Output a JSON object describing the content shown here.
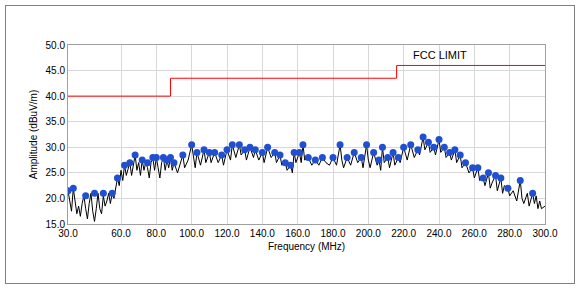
{
  "chart_data": {
    "type": "line",
    "x_label": "Frequency (MHz)",
    "y_label": "Amplitude (dBuV/m)",
    "xlim": [
      30,
      300
    ],
    "ylim": [
      15,
      50
    ],
    "xticks": [
      {
        "value": 30,
        "label": "30.0"
      },
      {
        "value": 60,
        "label": "60.0"
      },
      {
        "value": 80,
        "label": "80.0"
      },
      {
        "value": 100,
        "label": "100.0"
      },
      {
        "value": 120,
        "label": "120.0"
      },
      {
        "value": 140,
        "label": "140.0"
      },
      {
        "value": 160,
        "label": "160.0"
      },
      {
        "value": 180,
        "label": "180.0"
      },
      {
        "value": 200,
        "label": "200.0"
      },
      {
        "value": 220,
        "label": "220.0"
      },
      {
        "value": 240,
        "label": "240.0"
      },
      {
        "value": 260,
        "label": "260.0"
      },
      {
        "value": 280,
        "label": "280.0"
      },
      {
        "value": 300,
        "label": "300.0"
      }
    ],
    "yticks": [
      {
        "value": 15,
        "label": "15.0"
      },
      {
        "value": 20,
        "label": "20.0"
      },
      {
        "value": 25,
        "label": "25.0"
      },
      {
        "value": 30,
        "label": "30.0"
      },
      {
        "value": 35,
        "label": "35.0"
      },
      {
        "value": 40,
        "label": "40.0"
      },
      {
        "value": 45,
        "label": "45.0"
      },
      {
        "value": 50,
        "label": "50.0"
      }
    ],
    "grid": true,
    "annotations": [
      {
        "text": "FCC LIMIT",
        "x": 224,
        "y": 48
      }
    ],
    "series": [
      {
        "type": "line",
        "color": "#ff0000",
        "line_style": "step",
        "marker": "none",
        "x": [
          30,
          88,
          216,
          300
        ],
        "values": [
          40,
          43.5,
          46,
          46
        ]
      },
      {
        "type": "line",
        "color": "#000000",
        "line_style": "solid",
        "marker": "none",
        "x": [
          30,
          31,
          32,
          33,
          34,
          35,
          36,
          37,
          38,
          39,
          40,
          41,
          42,
          43,
          44,
          45,
          46,
          47,
          48,
          49,
          50,
          51,
          52,
          53,
          54,
          55,
          56,
          57,
          58,
          59,
          60,
          61,
          62,
          63,
          64,
          65,
          66,
          67,
          68,
          69,
          70,
          71,
          72,
          73,
          74,
          75,
          76,
          77,
          78,
          79,
          80,
          81,
          82,
          83,
          84,
          85,
          86,
          87,
          88,
          89,
          90,
          92,
          94,
          95,
          96,
          98,
          100,
          101,
          102,
          103,
          105,
          107,
          108,
          110,
          111,
          113,
          115,
          117,
          118,
          120,
          122,
          123,
          125,
          127,
          128,
          130,
          131,
          133,
          135,
          136,
          138,
          140,
          141,
          143,
          145,
          147,
          148,
          150,
          151,
          153,
          154,
          156,
          157,
          158,
          159,
          161,
          162,
          163,
          164,
          166,
          168,
          170,
          172,
          174,
          176,
          178,
          180,
          182,
          184,
          185,
          186,
          188,
          190,
          192,
          194,
          196,
          197,
          199,
          200,
          201,
          203,
          205,
          206,
          207,
          208,
          209,
          211,
          212,
          214,
          215,
          217,
          218,
          220,
          222,
          224,
          226,
          228,
          229,
          231,
          232,
          234,
          235,
          237,
          238,
          240,
          241,
          243,
          244,
          246,
          247,
          249,
          250,
          252,
          253,
          255,
          257,
          259,
          260,
          262,
          263,
          265,
          266,
          268,
          269,
          270,
          272,
          273,
          275,
          276,
          277,
          279,
          280,
          282,
          284,
          286,
          287,
          288,
          290,
          291,
          293,
          294,
          295,
          296,
          297,
          298,
          300
        ],
        "values": [
          21.5,
          19,
          17.5,
          22,
          19,
          17,
          18.5,
          16.5,
          19,
          20.5,
          18,
          16,
          19,
          21,
          17.5,
          15.5,
          18,
          21,
          18,
          17,
          20.5,
          18.5,
          19.5,
          21,
          19,
          21,
          20,
          22.5,
          24,
          22.5,
          25.5,
          23.5,
          26.5,
          24.5,
          26,
          27,
          24.5,
          26.5,
          28.5,
          25.5,
          27,
          24.5,
          27.5,
          25.5,
          27,
          26,
          24,
          27,
          28,
          25.5,
          28,
          26,
          24,
          27,
          28,
          25.5,
          27.5,
          26,
          28,
          25.5,
          27,
          25,
          27.5,
          28.5,
          26,
          27.5,
          30.5,
          28,
          26,
          29,
          26.5,
          29.5,
          27,
          29,
          27,
          29,
          27,
          28.5,
          26.5,
          29.5,
          27.5,
          30.5,
          28,
          30.5,
          28.5,
          29.5,
          27.5,
          30,
          28,
          29.5,
          27.5,
          29,
          27,
          30,
          28,
          29,
          27,
          28.5,
          26.5,
          27,
          25.5,
          26.5,
          25,
          29,
          27,
          29,
          27,
          30.5,
          27.5,
          28,
          26.5,
          27.5,
          26.5,
          28,
          27,
          26.5,
          28,
          26.5,
          30.5,
          27.5,
          26,
          28,
          26.5,
          29,
          27,
          28,
          26,
          30.5,
          27.5,
          26,
          29,
          26.5,
          27.5,
          25.5,
          30,
          27,
          28,
          26,
          29,
          26.5,
          28,
          27,
          30,
          27.5,
          30.5,
          28,
          29.5,
          28.5,
          32,
          29.5,
          31,
          29,
          30,
          28.5,
          31.5,
          29,
          30,
          28,
          29,
          27.5,
          29.5,
          27,
          28.5,
          26,
          27,
          25,
          26,
          24,
          26,
          23.5,
          24,
          22.5,
          25,
          22,
          23,
          24.5,
          21.5,
          24,
          21,
          22.5,
          22,
          20.5,
          21.5,
          19.5,
          23.5,
          20,
          19,
          21,
          18.5,
          21,
          19,
          20.5,
          18,
          19.5,
          18,
          18.5
        ]
      },
      {
        "type": "scatter",
        "color": "#2050d0",
        "marker": "circle",
        "x": [
          30,
          33,
          40,
          45,
          50,
          55,
          58,
          62,
          65,
          68,
          72,
          75,
          78,
          80,
          84,
          86,
          88,
          90,
          95,
          100,
          103,
          107,
          110,
          113,
          117,
          120,
          123,
          127,
          130,
          133,
          136,
          140,
          143,
          147,
          150,
          153,
          156,
          158,
          161,
          163,
          166,
          170,
          174,
          180,
          184,
          188,
          192,
          196,
          199,
          203,
          206,
          208,
          211,
          214,
          217,
          220,
          224,
          228,
          231,
          234,
          237,
          240,
          243,
          246,
          249,
          252,
          255,
          259,
          262,
          265,
          268,
          272,
          275,
          279,
          286,
          293
        ],
        "values": [
          21.5,
          22,
          20.5,
          21,
          21,
          21,
          24,
          26.5,
          27,
          28.5,
          27.5,
          27,
          28,
          28,
          28,
          27.5,
          28,
          27,
          28.5,
          30.5,
          29,
          29.5,
          29,
          29,
          28.5,
          29.5,
          30.5,
          30.5,
          29.5,
          30,
          29.5,
          29,
          30,
          29,
          28.5,
          27,
          26.5,
          29,
          29,
          30.5,
          28,
          27.5,
          28,
          28,
          30.5,
          28,
          29,
          28,
          30.5,
          29,
          27.5,
          30,
          28,
          29,
          28,
          30,
          30.5,
          29.5,
          32,
          31,
          30,
          31.5,
          30,
          29,
          29.5,
          28.5,
          27,
          26,
          26,
          24,
          25,
          24.5,
          24,
          22,
          23.5,
          21
        ]
      }
    ]
  }
}
